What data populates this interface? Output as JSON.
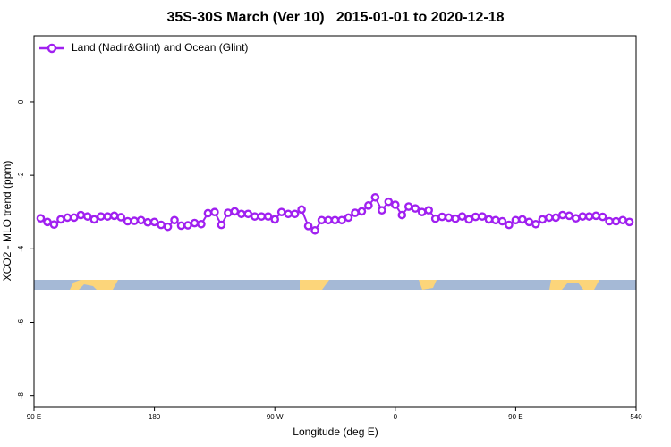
{
  "chart_data": {
    "type": "line",
    "title": "35S-30S March (Ver 10)   2015-01-01 to 2020-12-18",
    "xlabel": "Longitude (deg E)",
    "ylabel": "XCO2 - MLO trend (ppm)",
    "x": [
      95,
      100,
      105,
      110,
      115,
      120,
      125,
      130,
      135,
      140,
      145,
      150,
      155,
      160,
      165,
      170,
      175,
      180,
      185,
      190,
      195,
      200,
      205,
      210,
      215,
      220,
      225,
      230,
      235,
      240,
      245,
      250,
      255,
      260,
      265,
      270,
      275,
      280,
      285,
      290,
      295,
      300,
      305,
      310,
      315,
      320,
      325,
      330,
      335,
      340,
      345,
      350,
      355,
      360,
      365,
      370,
      375,
      380,
      385,
      390,
      395,
      400,
      405,
      410,
      415,
      420,
      425,
      430,
      435,
      440,
      445,
      450,
      455,
      460,
      465,
      470,
      475,
      480,
      485,
      490,
      495,
      500,
      505,
      510,
      515,
      520,
      525,
      530,
      535
    ],
    "series": [
      {
        "name": "Land (Nadir&Glint) and Ocean (Glint)",
        "color": "#a020f0",
        "values": [
          -3.17,
          -3.27,
          -3.34,
          -3.2,
          -3.15,
          -3.15,
          -3.08,
          -3.12,
          -3.2,
          -3.12,
          -3.12,
          -3.1,
          -3.14,
          -3.25,
          -3.24,
          -3.22,
          -3.28,
          -3.27,
          -3.35,
          -3.4,
          -3.22,
          -3.37,
          -3.36,
          -3.3,
          -3.33,
          -3.03,
          -3.0,
          -3.35,
          -3.02,
          -2.98,
          -3.05,
          -3.05,
          -3.12,
          -3.12,
          -3.12,
          -3.2,
          -3.0,
          -3.05,
          -3.05,
          -2.93,
          -3.38,
          -3.5,
          -3.22,
          -3.22,
          -3.22,
          -3.22,
          -3.15,
          -3.02,
          -2.98,
          -2.82,
          -2.6,
          -2.95,
          -2.72,
          -2.8,
          -3.08,
          -2.85,
          -2.9,
          -3.0,
          -2.95,
          -3.18,
          -3.13,
          -3.15,
          -3.18,
          -3.12,
          -3.2,
          -3.13,
          -3.12,
          -3.2,
          -3.22,
          -3.25,
          -3.35,
          -3.22,
          -3.2,
          -3.27,
          -3.33,
          -3.2,
          -3.15,
          -3.15,
          -3.08,
          -3.1,
          -3.17,
          -3.12,
          -3.12,
          -3.1,
          -3.13,
          -3.25,
          -3.25,
          -3.22,
          -3.27
        ]
      }
    ],
    "xlim": [
      90,
      540
    ],
    "xticks": [
      {
        "value": 90,
        "label": "90 E"
      },
      180,
      {
        "value": 270,
        "label": "90 W"
      },
      {
        "value": 360,
        "label": "0"
      },
      {
        "value": 450,
        "label": "90 E"
      },
      540
    ],
    "ylim": [
      -8.3,
      1.8
    ],
    "yticks": [
      0,
      -2,
      -4,
      -6,
      -8
    ],
    "legend": "top-left"
  }
}
